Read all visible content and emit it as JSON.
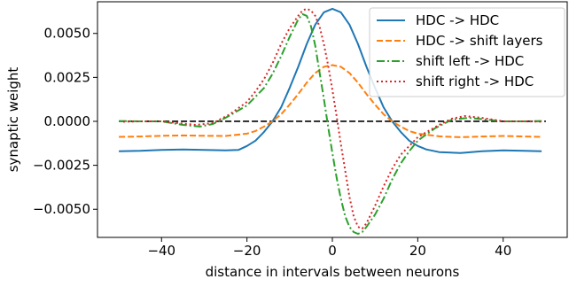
{
  "chart_data": {
    "type": "line",
    "title": "",
    "xlabel": "distance in intervals between neurons",
    "ylabel": "synaptic weight",
    "xlim": [
      -55,
      55
    ],
    "ylim": [
      -0.0066,
      0.0068
    ],
    "x_ticks": [
      -40,
      -20,
      0,
      20,
      40
    ],
    "x_tick_labels": [
      "−40",
      "−20",
      "0",
      "20",
      "40"
    ],
    "y_ticks": [
      -0.005,
      -0.0025,
      0.0,
      0.0025,
      0.005
    ],
    "y_tick_labels": [
      "−0.0050",
      "−0.0025",
      "0.0000",
      "0.0025",
      "0.0050"
    ],
    "grid": false,
    "legend": {
      "placement": "upper right"
    },
    "reference_line": {
      "y": 0.0,
      "color": "#000000",
      "dash": "dashed"
    },
    "series": [
      {
        "name": "HDC -> HDC",
        "color": "#1f77b4",
        "dash": "solid",
        "x": [
          -50,
          -45,
          -40,
          -35,
          -30,
          -25,
          -22,
          -20,
          -18,
          -16,
          -14,
          -12,
          -10,
          -8,
          -6,
          -4,
          -2,
          0,
          2,
          4,
          6,
          8,
          10,
          12,
          14,
          16,
          18,
          20,
          22,
          25,
          30,
          35,
          40,
          45,
          49
        ],
        "y": [
          -0.0017,
          -0.00168,
          -0.00163,
          -0.0016,
          -0.00163,
          -0.00165,
          -0.00163,
          -0.0014,
          -0.0011,
          -0.0006,
          0.0,
          0.0008,
          0.0019,
          0.0031,
          0.0044,
          0.0055,
          0.0062,
          0.0064,
          0.0062,
          0.0055,
          0.0044,
          0.0031,
          0.0019,
          0.0008,
          0.0,
          -0.0006,
          -0.0011,
          -0.0014,
          -0.0016,
          -0.00175,
          -0.0018,
          -0.0017,
          -0.00165,
          -0.00168,
          -0.0017
        ]
      },
      {
        "name": "HDC -> shift layers",
        "color": "#ff7f0e",
        "dash": "dashed",
        "x": [
          -50,
          -45,
          -40,
          -35,
          -30,
          -25,
          -20,
          -18,
          -16,
          -14,
          -12,
          -10,
          -8,
          -6,
          -4,
          -2,
          0,
          2,
          4,
          6,
          8,
          10,
          12,
          14,
          16,
          18,
          20,
          25,
          30,
          35,
          40,
          45,
          49
        ],
        "y": [
          -0.00088,
          -0.00086,
          -0.00082,
          -0.0008,
          -0.00082,
          -0.00083,
          -0.0007,
          -0.00055,
          -0.0003,
          0.0,
          0.0004,
          0.00095,
          0.00155,
          0.0022,
          0.00275,
          0.0031,
          0.0032,
          0.0031,
          0.00275,
          0.0022,
          0.00155,
          0.00095,
          0.0004,
          0.0,
          -0.0003,
          -0.00055,
          -0.0007,
          -0.00085,
          -0.0009,
          -0.00086,
          -0.00083,
          -0.00086,
          -0.00088
        ]
      },
      {
        "name": "shift left -> HDC",
        "color": "#2ca02c",
        "dash": "dashdot",
        "x": [
          -50,
          -45,
          -40,
          -35,
          -31,
          -28,
          -25,
          -20,
          -16,
          -14,
          -12,
          -10,
          -8,
          -7,
          -6,
          -5,
          -4,
          -3,
          -2,
          -1,
          0,
          1,
          2,
          3,
          4,
          5,
          6,
          7,
          8,
          10,
          12,
          14,
          16,
          18,
          20,
          24,
          28,
          32,
          36,
          40,
          45,
          49
        ],
        "y": [
          2e-05,
          0.0,
          0.0,
          -0.0002,
          -0.0003,
          -0.00015,
          0.0002,
          0.0009,
          0.0019,
          0.0027,
          0.0037,
          0.0048,
          0.0058,
          0.0061,
          0.006,
          0.0054,
          0.0043,
          0.0028,
          0.0013,
          -0.0003,
          -0.0018,
          -0.0032,
          -0.0044,
          -0.0054,
          -0.006,
          -0.0063,
          -0.0064,
          -0.0063,
          -0.006,
          -0.0053,
          -0.0044,
          -0.0033,
          -0.0024,
          -0.0017,
          -0.0011,
          -0.0004,
          0.0001,
          0.0002,
          0.0001,
          0.0,
          0.0,
          2e-05
        ]
      },
      {
        "name": "shift right -> HDC",
        "color": "#d62728",
        "dash": "dotted",
        "x": [
          -49,
          -45,
          -40,
          -36,
          -32,
          -28,
          -24,
          -20,
          -18,
          -16,
          -14,
          -12,
          -10,
          -8,
          -7,
          -6,
          -5,
          -4,
          -3,
          -2,
          -1,
          0,
          1,
          2,
          3,
          4,
          5,
          6,
          7,
          8,
          10,
          12,
          14,
          16,
          20,
          25,
          28,
          31,
          35,
          40,
          45,
          49
        ],
        "y": [
          -2e-05,
          0.0,
          0.0,
          -0.0001,
          -0.0002,
          -0.0001,
          0.0004,
          0.0011,
          0.0017,
          0.0024,
          0.0033,
          0.0044,
          0.0053,
          0.006,
          0.0063,
          0.0064,
          0.0063,
          0.006,
          0.0054,
          0.0044,
          0.0032,
          0.0018,
          0.0003,
          -0.0013,
          -0.0028,
          -0.0043,
          -0.0054,
          -0.006,
          -0.0061,
          -0.0058,
          -0.0048,
          -0.0037,
          -0.0027,
          -0.0019,
          -0.0009,
          -0.0002,
          0.00015,
          0.0003,
          0.0002,
          0.0,
          0.0,
          -2e-05
        ]
      }
    ]
  }
}
